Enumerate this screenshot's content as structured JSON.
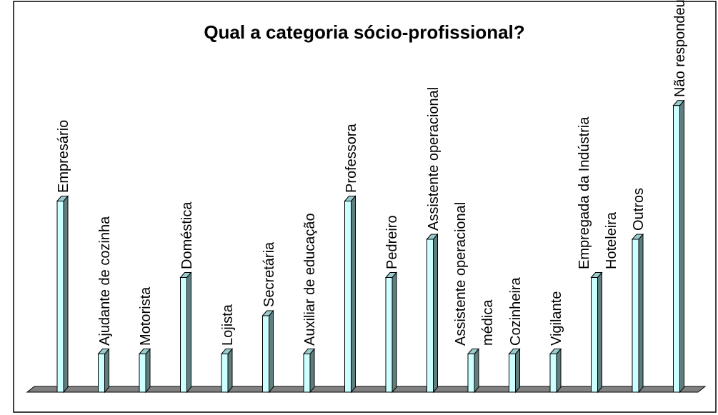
{
  "chart_data": {
    "type": "bar3d",
    "title": "Qual a categoria sócio-profissional?",
    "categories": [
      "Empresário",
      "Ajudante de cozinha",
      "Motorista",
      "Doméstica",
      "Lojista",
      "Secretária",
      "Auxiliar de educação",
      "Professora",
      "Pedreiro",
      "Assistente operacional",
      "Assistente operacional\nmédica",
      "Cozinheira",
      "Vigilante",
      "Empregada da Indústria\nHoteleira",
      "Outros",
      "Não respondeu"
    ],
    "values": [
      5,
      1,
      1,
      3,
      1,
      2,
      1,
      5,
      3,
      4,
      1,
      1,
      1,
      3,
      4,
      7.5
    ],
    "ylim": [
      0,
      8
    ],
    "color": "#ccffff",
    "side_color": "#5f7f7f"
  }
}
